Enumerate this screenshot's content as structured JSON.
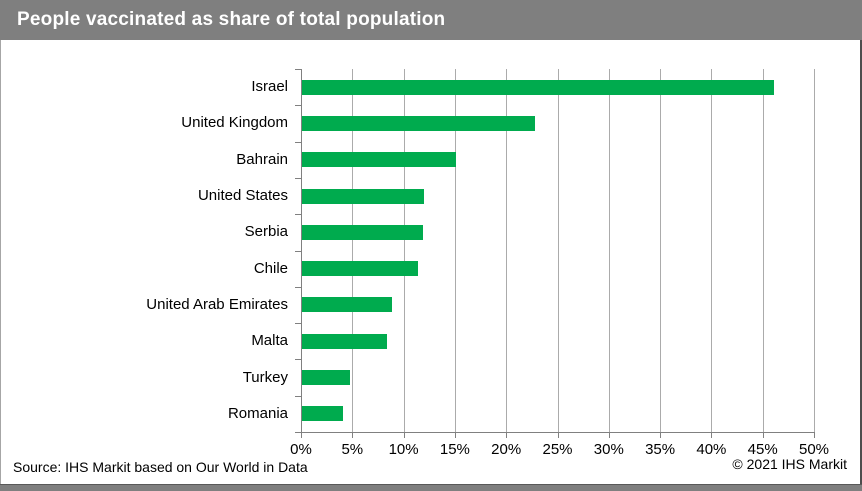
{
  "title": "People vaccinated as share of total population",
  "footer": {
    "source": "Source: IHS Markit based on Our World in Data",
    "copyright": "© 2021 IHS Markit"
  },
  "colors": {
    "bar": "#00AB4E",
    "title_bar": "#7f7f7f",
    "gridline": "#ababab",
    "axis": "#808080"
  },
  "chart_data": {
    "type": "bar",
    "orientation": "horizontal",
    "title": "People vaccinated as share of total population",
    "categories": [
      "Israel",
      "United Kingdom",
      "Bahrain",
      "United States",
      "Serbia",
      "Chile",
      "United Arab Emirates",
      "Malta",
      "Turkey",
      "Romania"
    ],
    "values": [
      46.0,
      22.7,
      15.0,
      11.9,
      11.8,
      11.3,
      8.8,
      8.3,
      4.7,
      4.0
    ],
    "unit": "%",
    "xlabel": "",
    "ylabel": "",
    "xlim": [
      0,
      50
    ],
    "x_tick_step": 5,
    "x_ticks": [
      "0%",
      "5%",
      "10%",
      "15%",
      "20%",
      "25%",
      "30%",
      "35%",
      "40%",
      "45%",
      "50%"
    ],
    "grid": true,
    "legend": false
  }
}
